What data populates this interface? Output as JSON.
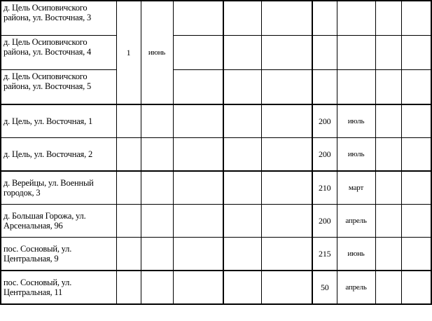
{
  "group": {
    "addresses": [
      "д. Цель Осиповичского района, ул. Восточная, 3",
      "д. Цель Осиповичского района, ул. Восточная, 4",
      "д. Цель Осиповичского района, ул. Восточная, 5"
    ],
    "count": "1",
    "month": "июнь"
  },
  "rows": [
    {
      "address": "д. Цель, ул. Восточная, 1",
      "value": "200",
      "month": "июль"
    },
    {
      "address": "д. Цель, ул. Восточная, 2",
      "value": "200",
      "month": "июль"
    },
    {
      "address": "д. Верейцы, ул. Военный городок, 3",
      "value": "210",
      "month": "март"
    },
    {
      "address": "д. Большая Горожа, ул. Арсенальная, 96",
      "value": "200",
      "month": "апрель"
    },
    {
      "address": "пос. Сосновый, ул. Центральная, 9",
      "value": "215",
      "month": "июнь"
    },
    {
      "address": "пос. Сосновый, ул. Центральная, 11",
      "value": "50",
      "month": "апрель"
    }
  ]
}
